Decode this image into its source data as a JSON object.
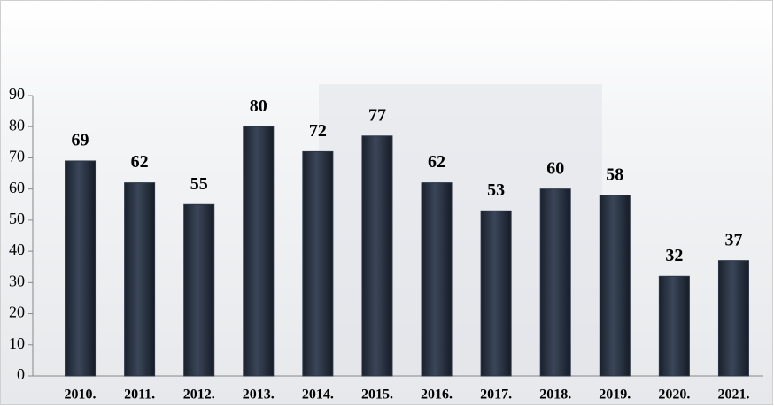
{
  "chart_data": {
    "type": "bar",
    "categories": [
      "2010.",
      "2011.",
      "2012.",
      "2013.",
      "2014.",
      "2015.",
      "2016.",
      "2017.",
      "2018.",
      "2019.",
      "2020.",
      "2021."
    ],
    "values": [
      69,
      62,
      55,
      80,
      72,
      77,
      62,
      53,
      60,
      58,
      32,
      37
    ],
    "color": "#2b3546",
    "ylim": [
      0,
      90
    ],
    "yticks": [
      0,
      10,
      20,
      30,
      40,
      50,
      60,
      70,
      80,
      90
    ],
    "grid": false
  }
}
